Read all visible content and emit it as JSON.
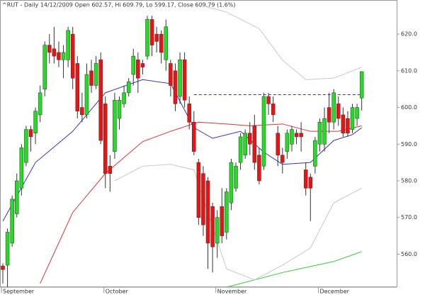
{
  "chart_data": {
    "type": "candlestick",
    "title": "^RUT - Daily 14/12/2009 Open 602.57, Hi 609.79, Lo 599.17, Close 609.79 (1.6%)",
    "ylim": [
      551,
      629.3
    ],
    "yticks": [
      {
        "value": 560,
        "label": "560.0"
      },
      {
        "value": 570,
        "label": "570.0"
      },
      {
        "value": 580,
        "label": "580.0"
      },
      {
        "value": 590,
        "label": "590.0"
      },
      {
        "value": 600,
        "label": "600.0"
      },
      {
        "value": 610,
        "label": "610.0"
      },
      {
        "value": 620,
        "label": "620.0"
      }
    ],
    "up_color": "#22dd22",
    "down_color": "#ee1111",
    "x_labels": [
      {
        "index": 0,
        "label": "September"
      },
      {
        "index": 22,
        "label": "October"
      },
      {
        "index": 46,
        "label": "November"
      },
      {
        "index": 68,
        "label": "December"
      }
    ],
    "ohlc": [
      [
        556.8,
        557.5,
        552,
        555.8
      ],
      [
        557,
        567,
        551,
        566
      ],
      [
        563,
        576,
        562,
        575
      ],
      [
        571,
        582,
        570,
        580
      ],
      [
        578,
        590,
        576,
        589
      ],
      [
        585,
        595,
        584,
        594
      ],
      [
        594,
        595,
        588,
        592
      ],
      [
        593,
        600,
        590,
        599
      ],
      [
        598,
        606,
        596,
        604
      ],
      [
        605,
        618,
        603,
        617
      ],
      [
        617,
        620,
        612,
        615
      ],
      [
        616,
        622,
        612,
        614
      ],
      [
        615,
        618,
        611,
        613
      ],
      [
        613,
        617,
        608,
        615
      ],
      [
        613,
        622,
        611,
        621
      ],
      [
        620,
        622,
        605,
        608
      ],
      [
        612,
        614,
        597,
        599
      ],
      [
        600,
        604,
        596,
        598
      ],
      [
        598,
        612,
        597,
        609
      ],
      [
        610,
        613,
        604,
        606
      ],
      [
        606,
        614,
        605,
        612
      ],
      [
        613,
        615,
        590,
        591
      ],
      [
        601,
        603,
        578,
        582
      ],
      [
        584,
        587,
        577,
        582
      ],
      [
        588,
        604,
        586,
        602
      ],
      [
        597,
        603,
        594,
        602
      ],
      [
        601,
        606,
        600,
        604
      ],
      [
        604,
        608,
        603,
        607
      ],
      [
        609,
        616,
        606,
        614
      ],
      [
        613,
        615,
        604,
        608
      ],
      [
        612,
        613,
        609,
        611
      ],
      [
        614,
        625,
        613,
        624
      ],
      [
        624,
        625,
        614,
        617
      ],
      [
        620,
        622,
        615,
        618
      ],
      [
        620,
        621,
        612,
        615
      ],
      [
        613,
        624,
        610,
        622
      ],
      [
        612,
        613,
        603,
        606
      ],
      [
        610,
        612,
        599,
        601
      ],
      [
        603,
        615,
        601,
        613
      ],
      [
        613,
        615,
        600,
        602
      ],
      [
        601,
        603,
        594,
        596
      ],
      [
        596,
        599,
        587,
        588
      ],
      [
        585,
        586,
        568,
        570
      ],
      [
        582,
        584,
        565,
        568
      ],
      [
        580,
        581,
        556,
        563
      ],
      [
        573,
        574,
        555,
        562
      ],
      [
        563,
        572,
        559,
        570
      ],
      [
        573,
        578,
        563,
        565
      ],
      [
        566,
        578,
        564,
        577
      ],
      [
        574,
        586,
        572,
        585
      ],
      [
        578,
        585,
        577,
        584
      ],
      [
        585,
        593,
        583,
        592
      ],
      [
        587,
        594,
        586,
        593
      ],
      [
        593,
        596,
        587,
        590
      ],
      [
        595,
        598,
        583,
        585
      ],
      [
        587,
        589,
        579,
        580
      ],
      [
        584,
        604,
        583,
        603
      ],
      [
        603,
        604,
        598,
        601
      ],
      [
        601,
        603,
        596,
        598
      ],
      [
        593,
        595,
        584,
        587
      ],
      [
        587,
        589,
        582,
        585
      ],
      [
        588,
        594,
        586,
        593
      ],
      [
        590,
        595,
        588,
        594
      ],
      [
        593,
        594,
        590,
        592
      ],
      [
        593,
        596,
        588,
        592
      ],
      [
        583,
        585,
        576,
        578
      ],
      [
        581,
        582,
        569,
        578
      ],
      [
        584,
        592,
        582,
        591
      ],
      [
        590,
        597,
        588,
        596
      ],
      [
        590,
        600,
        588,
        597
      ],
      [
        600,
        604,
        593,
        596
      ],
      [
        596,
        605,
        594,
        604
      ],
      [
        601,
        603,
        595,
        597
      ],
      [
        598,
        600,
        592,
        593
      ],
      [
        597,
        599,
        592,
        593
      ],
      [
        594,
        601,
        593,
        600
      ],
      [
        597,
        601,
        595,
        600
      ],
      [
        602.57,
        609.79,
        599.17,
        609.79
      ]
    ],
    "overlays": [
      {
        "color": "#3333cc",
        "x": [
          0,
          7,
          15,
          22,
          30,
          36,
          41,
          45,
          51,
          56,
          60,
          66,
          71,
          75,
          77
        ],
        "values": [
          569,
          585,
          593.5,
          604,
          607.6,
          606.5,
          594.5,
          591.6,
          593.5,
          587.8,
          584.5,
          585,
          591,
          592.6,
          594.5
        ]
      },
      {
        "color": "#dd3333",
        "x": [
          8,
          15,
          22,
          30,
          36,
          42,
          48,
          53,
          60,
          66,
          72,
          77
        ],
        "values": [
          552,
          571.4,
          582,
          590.7,
          593.5,
          596,
          595.5,
          595,
          595.5,
          593.5,
          593.5,
          595
        ]
      },
      {
        "color": "#33cc33",
        "x": [
          48,
          60,
          71,
          77
        ],
        "values": [
          551,
          555,
          558,
          560.7
        ]
      },
      {
        "color": "#c8c8c8",
        "x": [
          42,
          48,
          55,
          60,
          65,
          71,
          77
        ],
        "values": [
          628,
          626,
          621.5,
          612.9,
          607.6,
          608,
          611
        ]
      },
      {
        "color": "#c8c8c8",
        "x": [
          24,
          30,
          36,
          41,
          44,
          48,
          54,
          60,
          66,
          71,
          77
        ],
        "values": [
          580,
          584,
          584.5,
          583,
          571.4,
          556,
          553,
          557,
          561.7,
          574,
          578
        ]
      }
    ],
    "hline": {
      "value": 603.5,
      "from": 41,
      "to": 77,
      "color": "#3333cc"
    }
  }
}
